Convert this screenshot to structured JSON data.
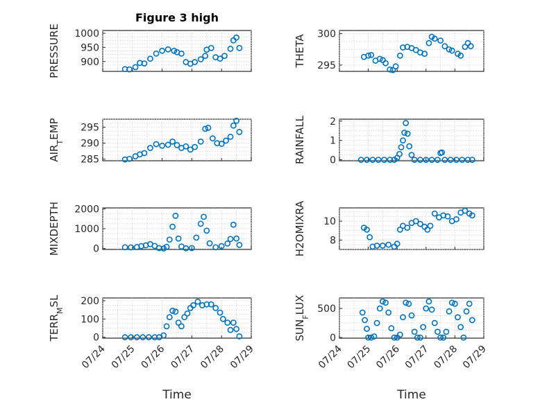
{
  "figure": {
    "title": "Figure 3 high",
    "marker_color": "#0072BD"
  },
  "chart_data": [
    {
      "type": "scatter",
      "name": "pressure",
      "title": "Figure 3 high",
      "ylabel": "PRESSURE",
      "ylim": [
        865,
        1010
      ],
      "yticks": [
        900,
        950,
        1000
      ],
      "xlim": [
        0,
        5
      ],
      "xticks": [
        "07/24",
        "07/25",
        "07/26",
        "07/27",
        "07/28",
        "07/29"
      ],
      "x": [
        0.75,
        0.9,
        1.1,
        1.25,
        1.4,
        1.6,
        1.8,
        2.0,
        2.2,
        2.4,
        2.5,
        2.65,
        2.8,
        2.95,
        3.1,
        3.3,
        3.45,
        3.5,
        3.65,
        3.8,
        3.95,
        4.1,
        4.3,
        4.4,
        4.5,
        4.6
      ],
      "y": [
        873,
        872,
        880,
        895,
        893,
        910,
        928,
        938,
        943,
        938,
        933,
        928,
        898,
        892,
        898,
        908,
        920,
        942,
        948,
        915,
        910,
        920,
        945,
        975,
        985,
        948
      ]
    },
    {
      "type": "scatter",
      "name": "theta",
      "ylabel": "THETA",
      "ylim": [
        294,
        300.5
      ],
      "yticks": [
        295,
        300
      ],
      "xlim": [
        0,
        5
      ],
      "xticks": [
        "07/24",
        "07/25",
        "07/26",
        "07/27",
        "07/28",
        "07/29"
      ],
      "x": [
        0.85,
        1.0,
        1.1,
        1.25,
        1.4,
        1.5,
        1.6,
        1.75,
        1.85,
        1.95,
        2.1,
        2.2,
        2.35,
        2.5,
        2.65,
        2.8,
        2.95,
        3.1,
        3.2,
        3.3,
        3.5,
        3.65,
        3.8,
        3.9,
        4.1,
        4.2,
        4.35,
        4.45,
        4.55
      ],
      "y": [
        296.3,
        296.5,
        296.6,
        295.7,
        296.0,
        295.8,
        295.3,
        294.3,
        294.2,
        294.8,
        296.5,
        297.8,
        297.9,
        297.7,
        297.4,
        297.0,
        296.8,
        298.5,
        299.5,
        299.2,
        298.9,
        298.0,
        297.5,
        297.3,
        296.8,
        296.5,
        297.9,
        298.5,
        298.0
      ]
    },
    {
      "type": "scatter",
      "name": "air_temp",
      "ylabel": "AIR",
      "ylabel_sub": "T",
      "ylabel_suffix": "EMP",
      "ylim": [
        284.5,
        297.5
      ],
      "yticks": [
        285,
        290,
        295
      ],
      "xlim": [
        0,
        5
      ],
      "xticks": [
        "07/24",
        "07/25",
        "07/26",
        "07/27",
        "07/28",
        "07/29"
      ],
      "x": [
        0.75,
        0.9,
        1.1,
        1.25,
        1.4,
        1.6,
        1.8,
        2.0,
        2.2,
        2.35,
        2.5,
        2.65,
        2.8,
        2.95,
        3.1,
        3.3,
        3.45,
        3.55,
        3.7,
        3.85,
        4.0,
        4.15,
        4.3,
        4.4,
        4.5,
        4.6
      ],
      "y": [
        284.9,
        285.1,
        285.9,
        286.5,
        286.9,
        288.5,
        289.7,
        289.2,
        289.5,
        290.5,
        289.4,
        288.5,
        289.0,
        288.0,
        288.8,
        290.5,
        294.5,
        294.8,
        291.5,
        290.0,
        289.8,
        290.8,
        292.0,
        295.5,
        297.0,
        293.5
      ]
    },
    {
      "type": "scatter",
      "name": "rainfall",
      "ylabel": "RAINFALL",
      "ylim": [
        -0.05,
        2.1
      ],
      "yticks": [
        0,
        1,
        2
      ],
      "xlim": [
        0,
        5
      ],
      "xticks": [
        "07/24",
        "07/25",
        "07/26",
        "07/27",
        "07/28",
        "07/29"
      ],
      "x": [
        0.75,
        0.95,
        1.15,
        1.35,
        1.55,
        1.75,
        1.9,
        2.0,
        2.08,
        2.14,
        2.2,
        2.25,
        2.3,
        2.36,
        2.42,
        2.5,
        2.6,
        2.8,
        3.0,
        3.2,
        3.4,
        3.5,
        3.55,
        3.65,
        3.85,
        4.05,
        4.25,
        4.45,
        4.6
      ],
      "y": [
        0,
        0,
        0,
        0,
        0,
        0,
        0,
        0.1,
        0.3,
        0.65,
        1.0,
        1.4,
        1.9,
        1.35,
        0.7,
        0.25,
        0,
        0,
        0,
        0,
        0,
        0.35,
        0.38,
        0,
        0,
        0,
        0,
        0,
        0
      ]
    },
    {
      "type": "scatter",
      "name": "mixdepth",
      "ylabel": "MIXDEPTH",
      "ylim": [
        -50,
        2050
      ],
      "yticks": [
        0,
        1000,
        2000
      ],
      "xlim": [
        0,
        5
      ],
      "xticks": [
        "07/24",
        "07/25",
        "07/26",
        "07/27",
        "07/28",
        "07/29"
      ],
      "x": [
        0.75,
        0.95,
        1.15,
        1.3,
        1.45,
        1.6,
        1.75,
        1.9,
        2.05,
        2.15,
        2.25,
        2.35,
        2.45,
        2.55,
        2.65,
        2.8,
        3.0,
        3.15,
        3.3,
        3.4,
        3.5,
        3.6,
        3.8,
        4.0,
        4.2,
        4.3,
        4.4,
        4.5,
        4.6
      ],
      "y": [
        60,
        55,
        70,
        120,
        160,
        220,
        130,
        20,
        0,
        80,
        450,
        1100,
        1650,
        500,
        100,
        10,
        20,
        550,
        1250,
        1600,
        900,
        260,
        60,
        120,
        250,
        480,
        1200,
        500,
        180
      ]
    },
    {
      "type": "scatter",
      "name": "h2omixra",
      "ylabel": "H2OMIXRA",
      "ylim": [
        7.0,
        11.4
      ],
      "yticks": [
        8,
        10
      ],
      "xlim": [
        0,
        5
      ],
      "xticks": [
        "07/24",
        "07/25",
        "07/26",
        "07/27",
        "07/28",
        "07/29"
      ],
      "x": [
        0.85,
        0.95,
        1.05,
        1.15,
        1.3,
        1.5,
        1.7,
        1.9,
        2.0,
        2.1,
        2.2,
        2.35,
        2.5,
        2.65,
        2.8,
        2.95,
        3.05,
        3.15,
        3.3,
        3.45,
        3.6,
        3.75,
        3.9,
        4.05,
        4.2,
        4.35,
        4.5,
        4.6
      ],
      "y": [
        9.3,
        9.1,
        8.3,
        7.3,
        7.4,
        7.4,
        7.5,
        7.3,
        7.6,
        9.1,
        9.5,
        9.3,
        9.8,
        10.0,
        9.7,
        9.4,
        9.1,
        9.5,
        10.8,
        10.4,
        10.6,
        10.5,
        10.0,
        10.2,
        10.9,
        11.1,
        10.8,
        10.6
      ]
    },
    {
      "type": "scatter",
      "name": "terr_msl",
      "ylabel": "TERR",
      "ylabel_sub": "M",
      "ylabel_suffix": "SL",
      "ylim": [
        -5,
        215
      ],
      "yticks": [
        0,
        100,
        200
      ],
      "xlim": [
        0,
        5
      ],
      "xticks": [
        "07/24",
        "07/25",
        "07/26",
        "07/27",
        "07/28",
        "07/29"
      ],
      "x": [
        0.75,
        0.95,
        1.15,
        1.35,
        1.55,
        1.75,
        1.9,
        2.05,
        2.15,
        2.25,
        2.35,
        2.45,
        2.55,
        2.65,
        2.75,
        2.85,
        2.95,
        3.05,
        3.2,
        3.35,
        3.5,
        3.65,
        3.8,
        3.95,
        4.05,
        4.2,
        4.3,
        4.4,
        4.5,
        4.6
      ],
      "y": [
        0,
        0,
        0,
        0,
        0,
        0,
        0,
        10,
        60,
        110,
        145,
        140,
        80,
        60,
        110,
        130,
        160,
        175,
        195,
        175,
        180,
        180,
        160,
        135,
        100,
        80,
        40,
        80,
        45,
        5
      ]
    },
    {
      "type": "scatter",
      "name": "sun_flux",
      "ylabel": "SUN",
      "ylabel_sub": "F",
      "ylabel_suffix": "LUX",
      "ylim": [
        -10,
        680
      ],
      "yticks": [
        0,
        500
      ],
      "xlim": [
        0,
        5
      ],
      "xticks": [
        "07/24",
        "07/25",
        "07/26",
        "07/27",
        "07/28",
        "07/29"
      ],
      "x": [
        0.8,
        0.88,
        0.95,
        1.0,
        1.1,
        1.2,
        1.3,
        1.4,
        1.5,
        1.6,
        1.7,
        1.8,
        1.9,
        2.0,
        2.1,
        2.2,
        2.3,
        2.4,
        2.5,
        2.6,
        2.7,
        2.8,
        2.9,
        3.0,
        3.1,
        3.2,
        3.3,
        3.4,
        3.5,
        3.6,
        3.7,
        3.8,
        3.9,
        4.0,
        4.1,
        4.2,
        4.3,
        4.4,
        4.5,
        4.6
      ],
      "y": [
        430,
        300,
        150,
        0,
        0,
        20,
        250,
        500,
        620,
        600,
        430,
        160,
        0,
        0,
        50,
        350,
        600,
        580,
        380,
        100,
        0,
        0,
        180,
        500,
        620,
        480,
        250,
        100,
        0,
        0,
        100,
        450,
        600,
        580,
        350,
        180,
        0,
        450,
        580,
        300
      ]
    }
  ],
  "xlabel": "Time"
}
